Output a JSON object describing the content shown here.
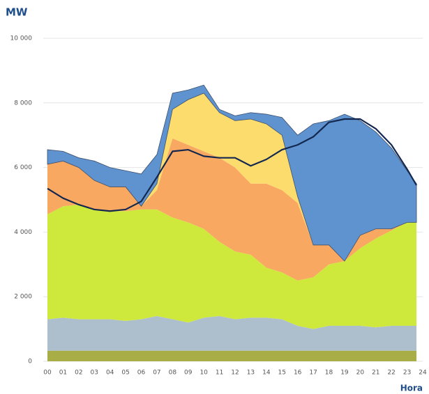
{
  "chart_data": {
    "type": "stacked_area",
    "y_label": "MW",
    "x_label": "Hora",
    "x": [
      0,
      1,
      2,
      3,
      4,
      5,
      6,
      7,
      8,
      9,
      10,
      11,
      12,
      13,
      14,
      15,
      16,
      17,
      18,
      19,
      20,
      21,
      22,
      23,
      23.6
    ],
    "xlim": [
      0,
      24
    ],
    "xticks": [
      {
        "value": 0,
        "label": "00"
      },
      {
        "value": 1,
        "label": "01"
      },
      {
        "value": 2,
        "label": "02"
      },
      {
        "value": 3,
        "label": "03"
      },
      {
        "value": 4,
        "label": "04"
      },
      {
        "value": 5,
        "label": "05"
      },
      {
        "value": 6,
        "label": "06"
      },
      {
        "value": 7,
        "label": "07"
      },
      {
        "value": 8,
        "label": "08"
      },
      {
        "value": 9,
        "label": "09"
      },
      10,
      11,
      12,
      13,
      14,
      15,
      16,
      17,
      18,
      19,
      20,
      21,
      22,
      23,
      24
    ],
    "ylim": [
      0,
      10000
    ],
    "yticks": [
      0,
      {
        "value": 2000,
        "label": "2 000"
      },
      {
        "value": 4000,
        "label": "4 000"
      },
      {
        "value": 6000,
        "label": "6 000"
      },
      {
        "value": 8000,
        "label": "8 000"
      },
      {
        "value": 10000,
        "label": "10 000"
      }
    ],
    "grid": true,
    "series": [
      {
        "color": "#a8ad45",
        "values": [
          330,
          330,
          330,
          330,
          330,
          330,
          330,
          330,
          330,
          330,
          330,
          330,
          330,
          330,
          330,
          330,
          330,
          330,
          330,
          330,
          330,
          330,
          330,
          330,
          330
        ]
      },
      {
        "color": "#adbfcd",
        "values": [
          970,
          1020,
          970,
          970,
          970,
          920,
          970,
          1070,
          970,
          870,
          1020,
          1070,
          970,
          1020,
          1020,
          970,
          770,
          670,
          770,
          770,
          770,
          720,
          770,
          770,
          770
        ]
      },
      {
        "color": "#cfe83c",
        "values": [
          3250,
          3450,
          3550,
          3400,
          3350,
          3400,
          3400,
          3300,
          3150,
          3100,
          2750,
          2300,
          2100,
          1950,
          1550,
          1450,
          1400,
          1600,
          1900,
          2000,
          2400,
          2750,
          2950,
          3200,
          3200
        ]
      },
      {
        "color": "#f9a862",
        "values": [
          1550,
          1400,
          1150,
          900,
          750,
          750,
          100,
          600,
          2450,
          2400,
          2400,
          2600,
          2600,
          2200,
          2600,
          2550,
          2400,
          1000,
          600,
          0,
          400,
          300,
          50,
          0,
          0
        ]
      },
      {
        "color": "#fddc6e",
        "values": [
          0,
          0,
          0,
          0,
          0,
          0,
          0,
          200,
          900,
          1400,
          1800,
          1400,
          1450,
          2000,
          1850,
          1700,
          200,
          0,
          0,
          0,
          0,
          0,
          0,
          0,
          0
        ]
      },
      {
        "color": "#5f93d0",
        "values": [
          450,
          300,
          300,
          600,
          600,
          500,
          1000,
          900,
          500,
          300,
          250,
          100,
          150,
          200,
          300,
          550,
          1900,
          3750,
          3850,
          4550,
          3550,
          3000,
          2500,
          1600,
          1200
        ]
      }
    ],
    "line": {
      "color": "#14284f",
      "values": [
        5350,
        5050,
        4850,
        4700,
        4650,
        4700,
        4950,
        5700,
        6500,
        6550,
        6350,
        6300,
        6300,
        6050,
        6250,
        6550,
        6700,
        6950,
        7400,
        7500,
        7500,
        7200,
        6700,
        5950,
        5450
      ]
    }
  }
}
